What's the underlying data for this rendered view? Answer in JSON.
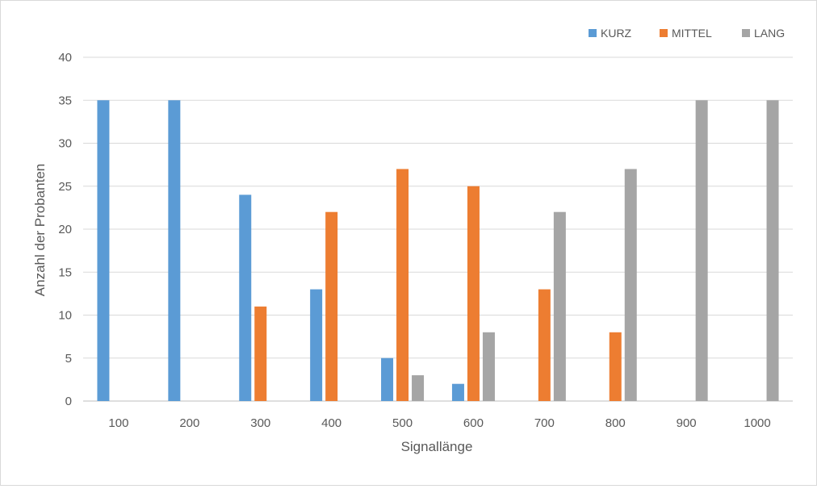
{
  "chart_data": {
    "type": "bar",
    "title": "",
    "xlabel": "Signallänge",
    "ylabel": "Anzahl der Probanten",
    "categories": [
      "100",
      "200",
      "300",
      "400",
      "500",
      "600",
      "700",
      "800",
      "900",
      "1000"
    ],
    "series": [
      {
        "name": "KURZ",
        "color": "#5b9bd5",
        "values": [
          35,
          35,
          24,
          13,
          5,
          2,
          0,
          0,
          0,
          0
        ]
      },
      {
        "name": "MITTEL",
        "color": "#ed7d31",
        "values": [
          0,
          0,
          11,
          22,
          27,
          25,
          13,
          8,
          0,
          0
        ]
      },
      {
        "name": "LANG",
        "color": "#a5a5a5",
        "values": [
          0,
          0,
          0,
          0,
          3,
          8,
          22,
          27,
          35,
          35
        ]
      }
    ],
    "ylim": [
      0,
      40
    ],
    "yticks": [
      0,
      5,
      10,
      15,
      20,
      25,
      30,
      35,
      40
    ],
    "grid": true,
    "legend_position": "top-right"
  }
}
